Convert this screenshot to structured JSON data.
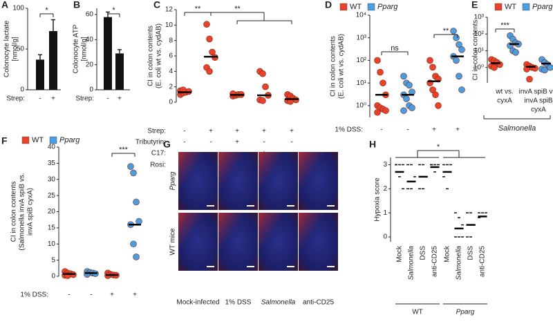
{
  "chart_data": [
    {
      "panel": "A",
      "type": "bar",
      "ylabel": [
        "Colonocyte lactate",
        "[nmol/g]"
      ],
      "xlabel": "Strep:",
      "categories": [
        "-",
        "+"
      ],
      "values": [
        37,
        72
      ],
      "errors": [
        6,
        14
      ],
      "color": "#111111",
      "ylim": [
        0,
        100
      ],
      "yticks": [
        0,
        50,
        100
      ],
      "significance": [
        "*"
      ]
    },
    {
      "panel": "B",
      "type": "bar",
      "ylabel": [
        "Colonocyte ATP",
        "[nmol/g]"
      ],
      "xlabel": "Strep:",
      "categories": [
        "-",
        "+"
      ],
      "values": [
        58,
        29
      ],
      "errors": [
        4,
        3
      ],
      "color": "#111111",
      "ylim": [
        0,
        65
      ],
      "yticks": [
        0,
        20,
        40,
        60
      ],
      "significance": [
        "*"
      ]
    },
    {
      "panel": "C",
      "type": "dot",
      "ylabel": [
        "CI in colon contents",
        "(E. coli wt vs. cydAB)"
      ],
      "conditions": [
        {
          "label": "Strep:",
          "values": [
            "-",
            "+",
            "+",
            "+",
            "+"
          ]
        },
        {
          "label": "Tributyrin:",
          "values": [
            "-",
            "-",
            "+",
            "-",
            "-"
          ]
        },
        {
          "label": "C17:",
          "values": [
            "-",
            "-",
            "-",
            "+",
            "-"
          ]
        },
        {
          "label": "Rosi:",
          "values": [
            "-",
            "-",
            "-",
            "-",
            "+"
          ]
        }
      ],
      "series": [
        {
          "color": "#e8432a",
          "values": [
            [
              1.0,
              1.2,
              1.3,
              1.4,
              1.5,
              1.6
            ],
            [
              10.1,
              8.2,
              6.5,
              5.8,
              4.5,
              4.0
            ],
            [
              0.8,
              0.9,
              1.0,
              1.0,
              1.1
            ],
            [
              4.0,
              3.7,
              2.0,
              0.9,
              0.3,
              0.2
            ],
            [
              1.0,
              0.8,
              0.5,
              0.3,
              0.2,
              0.1
            ]
          ],
          "medians": [
            1.3,
            5.9,
            0.95,
            0.9,
            0.4
          ]
        }
      ],
      "ylim": [
        0,
        12
      ],
      "yticks": [
        0,
        2,
        4,
        6,
        8,
        10,
        12
      ],
      "significance": [
        "**",
        "**"
      ]
    },
    {
      "panel": "D",
      "type": "dot",
      "log": true,
      "ylabel": [
        "CI in colon contents",
        "(E. coli wt vs. cydAB)"
      ],
      "conditions": [
        {
          "label": "1% DSS:",
          "values": [
            "-",
            "-",
            "+",
            "+"
          ]
        }
      ],
      "series": [
        {
          "name": "WT",
          "color": "#e8432a",
          "values": [
            [
              100,
              30,
              10,
              3,
              1,
              0.8,
              0.7,
              0.6,
              0.5
            ],
            [
              100,
              50,
              20,
              15,
              10,
              5,
              3,
              1
            ]
          ],
          "medians": [
            3,
            12
          ]
        },
        {
          "name": "Pparg",
          "color": "#4a9de0",
          "values": [
            [
              20,
              10,
              8,
              4,
              3,
              2,
              1,
              0.8,
              0.6
            ],
            [
              2000,
              1000,
              500,
              300,
              150,
              100,
              20,
              5
            ]
          ],
          "medians": [
            3,
            150
          ]
        }
      ],
      "ylim": [
        0.3,
        10000
      ],
      "yticks": [
        {
          "value": 1,
          "label": "10⁰"
        },
        {
          "value": 10,
          "label": "10¹"
        },
        {
          "value": 100,
          "label": "10²"
        },
        {
          "value": 1000,
          "label": "10³"
        },
        {
          "value": 10000,
          "label": "10⁴"
        }
      ],
      "significance": [
        "ns",
        "**"
      ]
    },
    {
      "panel": "E",
      "type": "dot",
      "log": true,
      "ylabel": [
        "CI in colon contents"
      ],
      "group_labels": [
        [
          "wt vs.",
          "cyxA"
        ],
        [
          "invA spiB vs.",
          "invA spiB",
          "cyxA"
        ]
      ],
      "group_title": "Salmonella",
      "series": [
        {
          "name": "WT",
          "color": "#e8432a",
          "values": [
            [
              3,
              2.5,
              2,
              1.5,
              1.2,
              1
            ],
            [
              1.5,
              1.2,
              1,
              0.9,
              0.8,
              0.2
            ]
          ],
          "medians": [
            1.8,
            1.1
          ]
        },
        {
          "name": "Pparg",
          "color": "#4a9de0",
          "values": [
            [
              80,
              50,
              30,
              25,
              20,
              10,
              8
            ],
            [
              3,
              2,
              1.5,
              1,
              0.8,
              0.7
            ]
          ],
          "medians": [
            25,
            1.7
          ]
        }
      ],
      "ylim": [
        0.12,
        1000
      ],
      "yticks": [
        {
          "value": 1,
          "label": "10⁰"
        },
        {
          "value": 10,
          "label": "10¹"
        },
        {
          "value": 100,
          "label": "10²"
        },
        {
          "value": 1000,
          "label": "10³"
        }
      ],
      "significance": [
        "***"
      ]
    },
    {
      "panel": "F",
      "type": "dot",
      "ylabel": [
        "CI in colon contents",
        "(Salmonella invA spiB vs.",
        "invA spiB cyxA)"
      ],
      "conditions": [
        {
          "label": "1% DSS:",
          "values": [
            "-",
            "-",
            "+",
            "+"
          ]
        }
      ],
      "series": [
        {
          "name": "WT",
          "color": "#e8432a",
          "values": [
            [
              1.5,
              1,
              0.8,
              0.5,
              0.3,
              0.2
            ],
            [
              1,
              0.6,
              0.4,
              0.3,
              0.2
            ]
          ],
          "medians": [
            0.7,
            0.4
          ]
        },
        {
          "name": "Pparg",
          "color": "#4a9de0",
          "values": [
            [
              1.5,
              1.2,
              1,
              0.8,
              0.6
            ],
            [
              34,
              32,
              23,
              17,
              16,
              10,
              6
            ]
          ],
          "medians": [
            1.0,
            16
          ]
        }
      ],
      "ylim": [
        0,
        40
      ],
      "yticks": [
        0,
        5,
        10,
        15,
        20,
        25,
        30,
        35,
        40
      ],
      "significance": [
        "***"
      ]
    },
    {
      "panel": "G",
      "type": "image",
      "rows": [
        "Pparg",
        "WT mice"
      ],
      "columns": [
        "Mock-infected",
        "1% DSS",
        "Salmonella",
        "anti-CD25"
      ]
    },
    {
      "panel": "H",
      "type": "dot",
      "marker": "dash",
      "ylabel": [
        "Hypoxia score"
      ],
      "categories": [
        "Mock",
        "Salmonella",
        "DSS",
        "anti-CD25",
        "Mock",
        "Salmonella",
        "DSS",
        "anti-CD25"
      ],
      "group_labels": [
        [
          "WT"
        ],
        [
          "Pparg"
        ]
      ],
      "series": [
        {
          "color": "#111111",
          "values": [
            [
              3,
              3,
              3,
              3,
              2.5,
              2
            ],
            [
              3,
              3,
              2.5,
              2,
              2
            ],
            [
              3,
              3,
              2.5,
              2,
              2
            ],
            [
              3,
              3,
              3,
              3,
              2.7
            ],
            [
              3,
              3,
              3,
              2.5,
              2
            ],
            [
              1,
              0.8,
              0.5,
              0,
              0,
              0
            ],
            [
              1,
              1,
              0.5,
              0,
              0
            ],
            [
              1,
              1,
              1,
              0.8
            ]
          ],
          "medians": [
            2.7,
            2.3,
            2.5,
            2.9,
            2.7,
            0.35,
            0.5,
            0.85
          ]
        }
      ],
      "ylim": [
        -0.2,
        3.3
      ],
      "yticks": [
        0,
        1,
        2,
        3
      ],
      "significance": [
        "*"
      ]
    }
  ]
}
